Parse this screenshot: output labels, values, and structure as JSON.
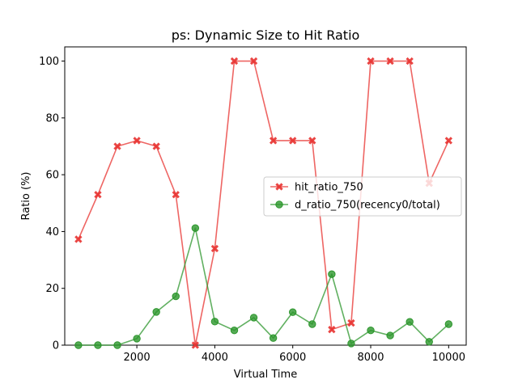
{
  "chart_data": {
    "type": "line",
    "title": "ps: Dynamic Size to Hit Ratio",
    "xlabel": "Virtual Time",
    "ylabel": "Ratio (%)",
    "xlim": [
      150,
      10450
    ],
    "ylim": [
      0,
      105
    ],
    "xticks": [
      2000,
      4000,
      6000,
      8000,
      10000
    ],
    "yticks": [
      0,
      20,
      40,
      60,
      80,
      100
    ],
    "grid": false,
    "legend_position": "center-right",
    "x": [
      500,
      1000,
      1500,
      2000,
      2500,
      3000,
      3500,
      4000,
      4500,
      5000,
      5500,
      6000,
      6500,
      7000,
      7500,
      8000,
      8500,
      9000,
      9500,
      10000
    ],
    "series": [
      {
        "name": "hit_ratio_750",
        "color": "#e8312f",
        "marker": "x",
        "values": [
          37.3,
          53,
          70,
          72,
          70,
          53,
          0,
          34,
          100,
          100,
          72,
          72,
          72,
          5.5,
          7.8,
          100,
          100,
          100,
          57,
          72
        ]
      },
      {
        "name": "d_ratio_750(recency0/total)",
        "color": "#2c962c",
        "marker": "o",
        "values": [
          0,
          0,
          0,
          2.3,
          11.7,
          17.2,
          41.2,
          8.3,
          5.2,
          9.7,
          2.5,
          11.6,
          7.4,
          25,
          0.6,
          5.2,
          3.4,
          8.2,
          1.2,
          7.4
        ]
      }
    ]
  }
}
